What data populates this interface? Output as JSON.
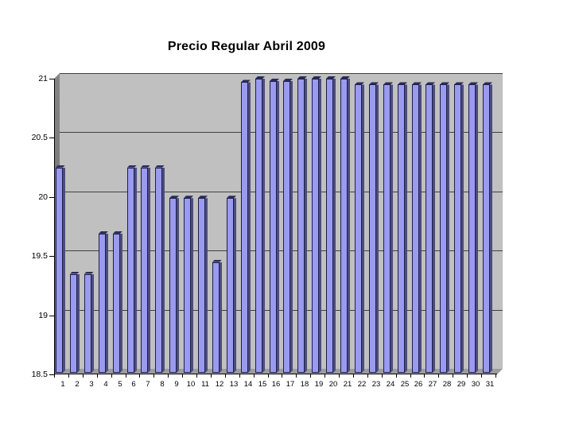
{
  "page": {
    "background": "#ffffff"
  },
  "chart_data": {
    "type": "bar",
    "title": "Precio Regular Abril 2009",
    "xlabel": "",
    "ylabel": "",
    "categories": [
      "1",
      "2",
      "3",
      "4",
      "5",
      "6",
      "7",
      "8",
      "9",
      "10",
      "11",
      "12",
      "13",
      "14",
      "15",
      "16",
      "17",
      "18",
      "19",
      "20",
      "21",
      "22",
      "23",
      "24",
      "25",
      "26",
      "27",
      "28",
      "29",
      "30",
      "31"
    ],
    "values": [
      20.25,
      19.35,
      19.35,
      19.69,
      19.69,
      20.25,
      20.25,
      20.25,
      19.99,
      19.99,
      19.99,
      19.45,
      19.99,
      20.97,
      21.0,
      20.98,
      20.98,
      21.0,
      21.0,
      21.0,
      21.0,
      20.95,
      20.95,
      20.95,
      20.95,
      20.95,
      20.95,
      20.95,
      20.95,
      20.95,
      20.95
    ],
    "ylim": [
      18.5,
      21
    ],
    "y_ticks": [
      21,
      20.5,
      20,
      19.5,
      19,
      18.5
    ],
    "y_tick_labels": [
      "21",
      "20.5",
      "20",
      "19.5",
      "19",
      "18.5"
    ],
    "grid": true,
    "legend": "none",
    "style": "3d-column-gray-wall",
    "colors": {
      "bar_face": "#9a9aee",
      "bar_edge": "#1e1e4e",
      "bar_side": "#4c4c7c",
      "bar_top": "#2b2b57",
      "plot_wall": "#c0c0c0",
      "side_wall": "#777777",
      "floor": "#9c9c9c",
      "gridline": "#404040",
      "axis": "#000000",
      "title_color": "#000000"
    }
  }
}
